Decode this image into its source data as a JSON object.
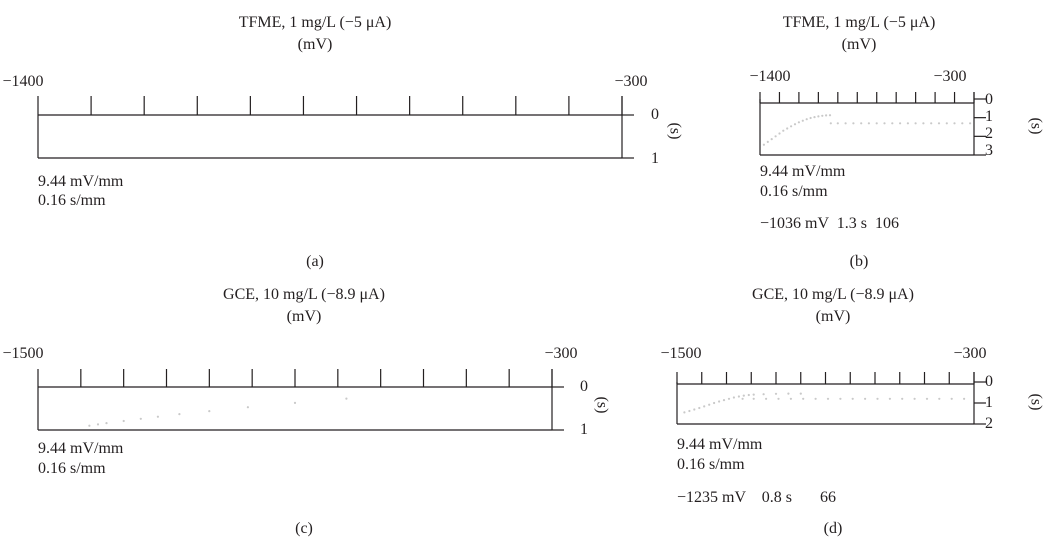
{
  "chart_data": [
    {
      "type": "scatter",
      "panel_label": "(a)",
      "title": "TFME, 1 mg/L (−5 μA)",
      "xlabel": "(mV)",
      "ylabel": "(s)",
      "x_range_labels": [
        "−1400",
        "−300"
      ],
      "xlim": [
        -1400,
        -300
      ],
      "ylim": [
        0,
        1
      ],
      "x_ticks": 12,
      "y_ticks": [
        "0",
        "1"
      ],
      "scale_notes": [
        "9.44 mV/mm",
        "0.16 s/mm"
      ],
      "readout": "",
      "points": []
    },
    {
      "type": "scatter",
      "panel_label": "(b)",
      "title": "TFME, 1 mg/L (−5 μA)",
      "xlabel": "(mV)",
      "ylabel": "(s)",
      "x_range_labels": [
        "−1400",
        "−300"
      ],
      "xlim": [
        -1400,
        -300
      ],
      "ylim": [
        0,
        3
      ],
      "x_ticks": 12,
      "y_ticks": [
        "0",
        "1",
        "2",
        "3"
      ],
      "scale_notes": [
        "9.44 mV/mm",
        "0.16 s/mm"
      ],
      "readout": "−1036 mV  1.3 s  106",
      "points": [
        [
          -1380,
          2.45
        ],
        [
          -1360,
          2.3
        ],
        [
          -1340,
          2.15
        ],
        [
          -1320,
          2.0
        ],
        [
          -1300,
          1.85
        ],
        [
          -1280,
          1.7
        ],
        [
          -1260,
          1.58
        ],
        [
          -1240,
          1.46
        ],
        [
          -1220,
          1.35
        ],
        [
          -1200,
          1.25
        ],
        [
          -1180,
          1.16
        ],
        [
          -1160,
          1.08
        ],
        [
          -1140,
          1.02
        ],
        [
          -1120,
          0.97
        ],
        [
          -1100,
          0.93
        ],
        [
          -1080,
          0.9
        ],
        [
          -1060,
          0.88
        ],
        [
          -1040,
          0.87
        ],
        [
          -1036,
          1.3
        ],
        [
          -1000,
          1.3
        ],
        [
          -960,
          1.3
        ],
        [
          -920,
          1.3
        ],
        [
          -880,
          1.3
        ],
        [
          -840,
          1.3
        ],
        [
          -800,
          1.3
        ],
        [
          -760,
          1.3
        ],
        [
          -720,
          1.3
        ],
        [
          -680,
          1.3
        ],
        [
          -640,
          1.3
        ],
        [
          -600,
          1.3
        ],
        [
          -560,
          1.3
        ],
        [
          -520,
          1.3
        ],
        [
          -480,
          1.3
        ],
        [
          -440,
          1.3
        ],
        [
          -400,
          1.3
        ],
        [
          -360,
          1.3
        ],
        [
          -320,
          1.3
        ]
      ]
    },
    {
      "type": "scatter",
      "panel_label": "(c)",
      "title": "GCE, 10 mg/L (−8.9 μA)",
      "xlabel": "(mV)",
      "ylabel": "(s)",
      "x_range_labels": [
        "−1500",
        "−300"
      ],
      "xlim": [
        -1500,
        -300
      ],
      "ylim": [
        0,
        1
      ],
      "x_ticks": 13,
      "y_ticks": [
        "0",
        "1"
      ],
      "scale_notes": [
        "9.44 mV/mm",
        "0.16 s/mm"
      ],
      "readout": "",
      "points": [
        [
          -1380,
          0.9
        ],
        [
          -1360,
          0.87
        ],
        [
          -1340,
          0.84
        ],
        [
          -1300,
          0.79
        ],
        [
          -1260,
          0.74
        ],
        [
          -1220,
          0.69
        ],
        [
          -1170,
          0.63
        ],
        [
          -1100,
          0.56
        ],
        [
          -1010,
          0.47
        ],
        [
          -900,
          0.37
        ],
        [
          -780,
          0.27
        ]
      ]
    },
    {
      "type": "scatter",
      "panel_label": "(d)",
      "title": "GCE, 10 mg/L (−8.9 μA)",
      "xlabel": "(mV)",
      "ylabel": "(s)",
      "x_range_labels": [
        "−1500",
        "−300"
      ],
      "xlim": [
        -1500,
        -300
      ],
      "ylim": [
        0,
        2
      ],
      "x_ticks": 13,
      "y_ticks": [
        "0",
        "1",
        "2"
      ],
      "scale_notes": [
        "9.44 mV/mm",
        "0.16 s/mm"
      ],
      "readout": "−1235 mV    0.8 s       66",
      "points": [
        [
          -1470,
          1.45
        ],
        [
          -1450,
          1.38
        ],
        [
          -1430,
          1.31
        ],
        [
          -1410,
          1.24
        ],
        [
          -1390,
          1.16
        ],
        [
          -1370,
          1.08
        ],
        [
          -1350,
          1.0
        ],
        [
          -1330,
          0.93
        ],
        [
          -1310,
          0.86
        ],
        [
          -1290,
          0.8
        ],
        [
          -1270,
          0.74
        ],
        [
          -1250,
          0.69
        ],
        [
          -1230,
          0.65
        ],
        [
          -1210,
          0.62
        ],
        [
          -1190,
          0.6
        ],
        [
          -1150,
          0.58
        ],
        [
          -1100,
          0.56
        ],
        [
          -1050,
          0.55
        ],
        [
          -1000,
          0.55
        ],
        [
          -1235,
          0.8
        ],
        [
          -1190,
          0.8
        ],
        [
          -1140,
          0.8
        ],
        [
          -1090,
          0.8
        ],
        [
          -1040,
          0.8
        ],
        [
          -990,
          0.8
        ],
        [
          -940,
          0.8
        ],
        [
          -890,
          0.8
        ],
        [
          -840,
          0.8
        ],
        [
          -790,
          0.8
        ],
        [
          -740,
          0.8
        ],
        [
          -690,
          0.8
        ],
        [
          -640,
          0.8
        ],
        [
          -590,
          0.8
        ],
        [
          -540,
          0.8
        ],
        [
          -490,
          0.8
        ],
        [
          -440,
          0.8
        ],
        [
          -390,
          0.8
        ],
        [
          -340,
          0.8
        ]
      ]
    }
  ]
}
